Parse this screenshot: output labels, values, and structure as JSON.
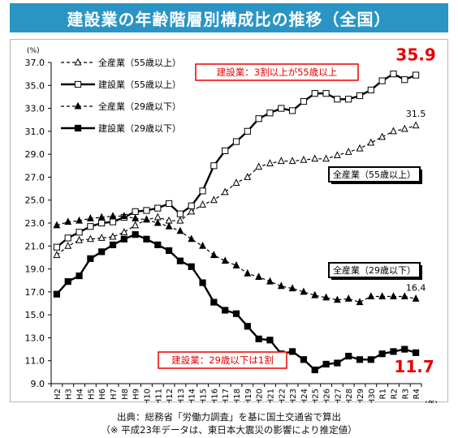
{
  "title": "建設業の年齢階層別構成比の推移（全国）",
  "source_line1": "出典：総務省「労働力調査」を基に国土交通省で算出",
  "source_line2": "（※ 平成23年データは、東日本大震災の影響により推定値）",
  "chart_data": {
    "type": "line",
    "title": "建設業の年齢階層別構成比の推移（全国）",
    "ylabel": "(%)",
    "xlabel": "(年)",
    "ylim": [
      9.0,
      37.0
    ],
    "yticks": [
      "37.0",
      "35.0",
      "33.0",
      "31.0",
      "29.0",
      "27.0",
      "25.0",
      "23.0",
      "21.0",
      "19.0",
      "17.0",
      "15.0",
      "13.0",
      "11.0",
      "9.0"
    ],
    "grid": false,
    "legend_position": "top-left",
    "x": [
      "H2",
      "H3",
      "H4",
      "H5",
      "H6",
      "H7",
      "H8",
      "H9",
      "H10",
      "H11",
      "H12",
      "H13",
      "H14",
      "H15",
      "H16",
      "H17",
      "H18",
      "H19",
      "H20",
      "H21",
      "H22",
      "H23",
      "H24",
      "H25",
      "H26",
      "H27",
      "H28",
      "H29",
      "H30",
      "R1",
      "R2",
      "R3",
      "R4"
    ],
    "series": [
      {
        "name": "全産業（55歳以上）",
        "style": "dashed-open-triangle",
        "color": "#000000",
        "values": [
          20.2,
          21.0,
          21.5,
          21.6,
          21.7,
          21.8,
          22.2,
          22.8,
          23.3,
          23.5,
          23.2,
          23.2,
          24.0,
          24.6,
          25.0,
          25.7,
          26.5,
          27.0,
          27.9,
          28.2,
          28.4,
          28.4,
          28.5,
          28.6,
          28.6,
          28.9,
          29.2,
          29.5,
          30.0,
          30.5,
          31.0,
          31.2,
          31.5
        ]
      },
      {
        "name": "建設業（55歳以上）",
        "style": "solid-open-square",
        "color": "#000000",
        "values": [
          20.9,
          21.7,
          22.2,
          22.7,
          23.0,
          23.1,
          23.5,
          24.0,
          24.1,
          24.3,
          24.7,
          23.8,
          24.5,
          25.8,
          28.0,
          29.3,
          30.1,
          31.0,
          32.1,
          32.6,
          33.0,
          32.8,
          33.6,
          34.3,
          34.3,
          33.8,
          33.8,
          34.1,
          34.6,
          35.4,
          36.0,
          35.5,
          35.9
        ]
      },
      {
        "name": "全産業（29歳以下）",
        "style": "dashed-filled-triangle",
        "color": "#000000",
        "values": [
          22.8,
          23.1,
          23.2,
          23.4,
          23.5,
          23.6,
          23.6,
          23.4,
          23.3,
          23.0,
          22.7,
          22.3,
          21.6,
          21.0,
          20.2,
          19.7,
          19.3,
          18.6,
          18.3,
          17.9,
          17.5,
          17.3,
          17.0,
          16.7,
          16.5,
          16.3,
          16.4,
          16.1,
          16.6,
          16.6,
          16.6,
          16.6,
          16.4
        ]
      },
      {
        "name": "建設業（29歳以下）",
        "style": "solid-filled-square",
        "color": "#000000",
        "values": [
          16.8,
          17.9,
          18.4,
          19.9,
          20.5,
          21.1,
          21.6,
          22.0,
          21.6,
          21.1,
          20.6,
          19.7,
          19.2,
          17.8,
          16.1,
          15.4,
          15.1,
          14.0,
          12.9,
          12.8,
          11.6,
          11.8,
          11.1,
          10.2,
          10.7,
          10.8,
          11.4,
          11.1,
          11.1,
          11.6,
          11.8,
          12.0,
          11.7
        ]
      }
    ],
    "annotations": [
      {
        "text": "建設業：3割以上が55歳以上",
        "color": "#e60000",
        "boxed": true
      },
      {
        "text": "全産業（55歳以上）",
        "color": "#000000",
        "boxed": true
      },
      {
        "text": "全産業（29歳以下）",
        "color": "#000000",
        "boxed": true
      },
      {
        "text": "建設業：29歳以下は1割",
        "color": "#e60000",
        "boxed": true
      }
    ],
    "end_labels": [
      {
        "text": "35.9",
        "color": "#e60000",
        "series": "建設業（55歳以上）"
      },
      {
        "text": "31.5",
        "color": "#000000",
        "series": "全産業（55歳以上）"
      },
      {
        "text": "16.4",
        "color": "#000000",
        "series": "全産業（29歳以下）"
      },
      {
        "text": "11.7",
        "color": "#e60000",
        "series": "建設業（29歳以下）"
      }
    ]
  }
}
